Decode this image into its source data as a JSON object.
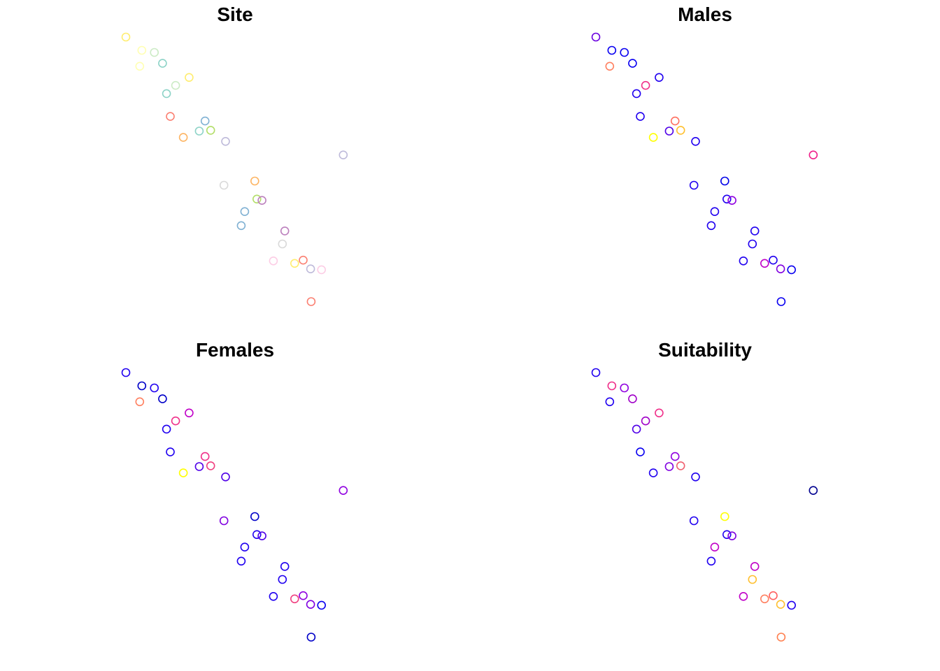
{
  "chart_data": {
    "type": "scatter",
    "grid": false,
    "axes_visible": false,
    "legend": "none",
    "panels": [
      {
        "id": "site",
        "title": "Site",
        "points": [
          {
            "x": 0.0,
            "y": 0.0,
            "color": "#ffed6f"
          },
          {
            "x": 6.0,
            "y": -5.0,
            "color": "#ffffb3"
          },
          {
            "x": 10.7,
            "y": -5.8,
            "color": "#ccebc5"
          },
          {
            "x": 5.2,
            "y": -11.0,
            "color": "#ffffb3"
          },
          {
            "x": 13.8,
            "y": -9.9,
            "color": "#8dd3c7"
          },
          {
            "x": 23.8,
            "y": -15.2,
            "color": "#ffed6f"
          },
          {
            "x": 18.7,
            "y": -18.2,
            "color": "#ccebc5"
          },
          {
            "x": 15.3,
            "y": -21.3,
            "color": "#8dd3c7"
          },
          {
            "x": 16.7,
            "y": -29.9,
            "color": "#fb8072"
          },
          {
            "x": 29.8,
            "y": -31.6,
            "color": "#80b1d3"
          },
          {
            "x": 27.6,
            "y": -35.4,
            "color": "#8dd3c7"
          },
          {
            "x": 31.9,
            "y": -35.1,
            "color": "#b3de69"
          },
          {
            "x": 21.6,
            "y": -37.8,
            "color": "#fdb462"
          },
          {
            "x": 37.5,
            "y": -39.3,
            "color": "#bebada"
          },
          {
            "x": 81.8,
            "y": -44.4,
            "color": "#bebada"
          },
          {
            "x": 48.5,
            "y": -54.2,
            "color": "#fdb462"
          },
          {
            "x": 36.9,
            "y": -55.8,
            "color": "#d9d9d9"
          },
          {
            "x": 49.3,
            "y": -61.0,
            "color": "#b3de69"
          },
          {
            "x": 51.2,
            "y": -61.5,
            "color": "#bc80bd"
          },
          {
            "x": 44.7,
            "y": -65.7,
            "color": "#80b1d3"
          },
          {
            "x": 43.4,
            "y": -71.0,
            "color": "#80b1d3"
          },
          {
            "x": 59.8,
            "y": -73.0,
            "color": "#bc80bd"
          },
          {
            "x": 58.9,
            "y": -77.9,
            "color": "#d9d9d9"
          },
          {
            "x": 55.5,
            "y": -84.3,
            "color": "#fccde5"
          },
          {
            "x": 63.5,
            "y": -85.2,
            "color": "#ffed6f"
          },
          {
            "x": 66.7,
            "y": -84.0,
            "color": "#fb8072"
          },
          {
            "x": 69.5,
            "y": -87.3,
            "color": "#bebada"
          },
          {
            "x": 73.6,
            "y": -87.6,
            "color": "#fccde5"
          },
          {
            "x": 69.7,
            "y": -99.6,
            "color": "#fb8072"
          }
        ]
      },
      {
        "id": "males",
        "title": "Males",
        "points": [
          {
            "x": 0.0,
            "y": 0.0,
            "color": "#6a00e0"
          },
          {
            "x": 6.0,
            "y": -5.0,
            "color": "#0a00f0"
          },
          {
            "x": 10.7,
            "y": -5.8,
            "color": "#0a00f0"
          },
          {
            "x": 5.2,
            "y": -11.0,
            "color": "#ff8060"
          },
          {
            "x": 13.8,
            "y": -9.9,
            "color": "#0a00f0"
          },
          {
            "x": 23.8,
            "y": -15.2,
            "color": "#2000f0"
          },
          {
            "x": 18.7,
            "y": -18.2,
            "color": "#f0308a"
          },
          {
            "x": 15.3,
            "y": -21.3,
            "color": "#2000f0"
          },
          {
            "x": 16.7,
            "y": -29.9,
            "color": "#2000f0"
          },
          {
            "x": 29.8,
            "y": -31.6,
            "color": "#ff7060"
          },
          {
            "x": 27.6,
            "y": -35.4,
            "color": "#5000e8"
          },
          {
            "x": 31.9,
            "y": -35.1,
            "color": "#ffc030"
          },
          {
            "x": 21.6,
            "y": -37.8,
            "color": "#ffff00"
          },
          {
            "x": 37.5,
            "y": -39.3,
            "color": "#2000f0"
          },
          {
            "x": 81.8,
            "y": -44.4,
            "color": "#f0208a"
          },
          {
            "x": 48.5,
            "y": -54.2,
            "color": "#0000e8"
          },
          {
            "x": 36.9,
            "y": -55.8,
            "color": "#2000f0"
          },
          {
            "x": 49.3,
            "y": -61.0,
            "color": "#2000f0"
          },
          {
            "x": 51.2,
            "y": -61.5,
            "color": "#9000e0"
          },
          {
            "x": 44.7,
            "y": -65.7,
            "color": "#2000f0"
          },
          {
            "x": 43.4,
            "y": -71.0,
            "color": "#2000f0"
          },
          {
            "x": 59.8,
            "y": -73.0,
            "color": "#2000f0"
          },
          {
            "x": 58.9,
            "y": -77.9,
            "color": "#2000f0"
          },
          {
            "x": 55.5,
            "y": -84.3,
            "color": "#2000f0"
          },
          {
            "x": 63.5,
            "y": -85.2,
            "color": "#c000c8"
          },
          {
            "x": 66.7,
            "y": -84.0,
            "color": "#2000f0"
          },
          {
            "x": 69.5,
            "y": -87.3,
            "color": "#8000e0"
          },
          {
            "x": 73.6,
            "y": -87.6,
            "color": "#0a00f0"
          },
          {
            "x": 69.7,
            "y": -99.6,
            "color": "#0a00f0"
          }
        ]
      },
      {
        "id": "females",
        "title": "Females",
        "points": [
          {
            "x": 0.0,
            "y": 0.0,
            "color": "#2000f0"
          },
          {
            "x": 6.0,
            "y": -5.0,
            "color": "#0000c8"
          },
          {
            "x": 10.7,
            "y": -5.8,
            "color": "#2000f0"
          },
          {
            "x": 5.2,
            "y": -11.0,
            "color": "#ff8060"
          },
          {
            "x": 13.8,
            "y": -9.9,
            "color": "#0000c8"
          },
          {
            "x": 23.8,
            "y": -15.2,
            "color": "#c000c8"
          },
          {
            "x": 18.7,
            "y": -18.2,
            "color": "#f0308a"
          },
          {
            "x": 15.3,
            "y": -21.3,
            "color": "#2000f0"
          },
          {
            "x": 16.7,
            "y": -29.9,
            "color": "#2000f0"
          },
          {
            "x": 29.8,
            "y": -31.6,
            "color": "#f0308a"
          },
          {
            "x": 27.6,
            "y": -35.4,
            "color": "#5000e8"
          },
          {
            "x": 31.9,
            "y": -35.1,
            "color": "#f04080"
          },
          {
            "x": 21.6,
            "y": -37.8,
            "color": "#ffff00"
          },
          {
            "x": 37.5,
            "y": -39.3,
            "color": "#5000e8"
          },
          {
            "x": 81.8,
            "y": -44.4,
            "color": "#9000e0"
          },
          {
            "x": 48.5,
            "y": -54.2,
            "color": "#0000c8"
          },
          {
            "x": 36.9,
            "y": -55.8,
            "color": "#8000e0"
          },
          {
            "x": 49.3,
            "y": -61.0,
            "color": "#2000f0"
          },
          {
            "x": 51.2,
            "y": -61.5,
            "color": "#5000e8"
          },
          {
            "x": 44.7,
            "y": -65.7,
            "color": "#2000f0"
          },
          {
            "x": 43.4,
            "y": -71.0,
            "color": "#2000f0"
          },
          {
            "x": 59.8,
            "y": -73.0,
            "color": "#2000f0"
          },
          {
            "x": 58.9,
            "y": -77.9,
            "color": "#2000f0"
          },
          {
            "x": 55.5,
            "y": -84.3,
            "color": "#2000f0"
          },
          {
            "x": 63.5,
            "y": -85.2,
            "color": "#f04080"
          },
          {
            "x": 66.7,
            "y": -84.0,
            "color": "#9000e0"
          },
          {
            "x": 69.5,
            "y": -87.3,
            "color": "#8000e0"
          },
          {
            "x": 73.6,
            "y": -87.6,
            "color": "#0a00f0"
          },
          {
            "x": 69.7,
            "y": -99.6,
            "color": "#0000c8"
          }
        ]
      },
      {
        "id": "suitability",
        "title": "Suitability",
        "points": [
          {
            "x": 0.0,
            "y": 0.0,
            "color": "#2000f0"
          },
          {
            "x": 6.0,
            "y": -5.0,
            "color": "#f0308a"
          },
          {
            "x": 10.7,
            "y": -5.8,
            "color": "#9000e0"
          },
          {
            "x": 5.2,
            "y": -11.0,
            "color": "#2000f0"
          },
          {
            "x": 13.8,
            "y": -9.9,
            "color": "#a000c8"
          },
          {
            "x": 23.8,
            "y": -15.2,
            "color": "#f0308a"
          },
          {
            "x": 18.7,
            "y": -18.2,
            "color": "#a000c8"
          },
          {
            "x": 15.3,
            "y": -21.3,
            "color": "#5000e8"
          },
          {
            "x": 16.7,
            "y": -29.9,
            "color": "#0a00f0"
          },
          {
            "x": 29.8,
            "y": -31.6,
            "color": "#9000e0"
          },
          {
            "x": 27.6,
            "y": -35.4,
            "color": "#8000e0"
          },
          {
            "x": 31.9,
            "y": -35.1,
            "color": "#f06070"
          },
          {
            "x": 21.6,
            "y": -37.8,
            "color": "#2000f0"
          },
          {
            "x": 37.5,
            "y": -39.3,
            "color": "#2000f0"
          },
          {
            "x": 81.8,
            "y": -44.4,
            "color": "#000090"
          },
          {
            "x": 48.5,
            "y": -54.2,
            "color": "#ffff00"
          },
          {
            "x": 36.9,
            "y": -55.8,
            "color": "#2000f0"
          },
          {
            "x": 49.3,
            "y": -61.0,
            "color": "#2000f0"
          },
          {
            "x": 51.2,
            "y": -61.5,
            "color": "#8000e0"
          },
          {
            "x": 44.7,
            "y": -65.7,
            "color": "#c000c8"
          },
          {
            "x": 43.4,
            "y": -71.0,
            "color": "#2000f0"
          },
          {
            "x": 59.8,
            "y": -73.0,
            "color": "#c000c8"
          },
          {
            "x": 58.9,
            "y": -77.9,
            "color": "#ffc030"
          },
          {
            "x": 55.5,
            "y": -84.3,
            "color": "#c000c8"
          },
          {
            "x": 63.5,
            "y": -85.2,
            "color": "#ff8060"
          },
          {
            "x": 66.7,
            "y": -84.0,
            "color": "#ff6060"
          },
          {
            "x": 69.5,
            "y": -87.3,
            "color": "#ffc030"
          },
          {
            "x": 73.6,
            "y": -87.6,
            "color": "#2000f0"
          },
          {
            "x": 69.7,
            "y": -99.6,
            "color": "#ff8050"
          }
        ]
      }
    ]
  }
}
